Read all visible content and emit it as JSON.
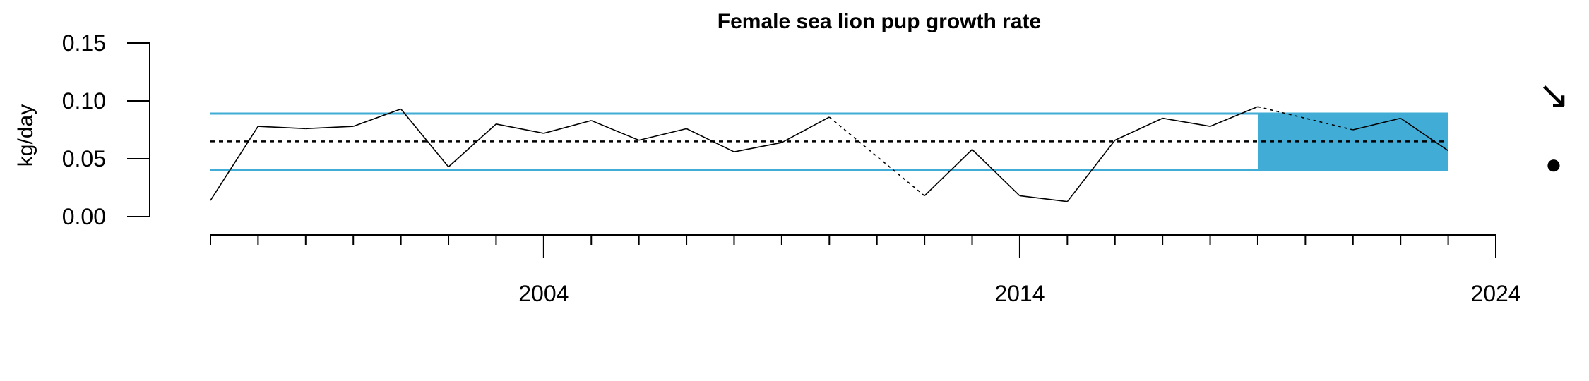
{
  "chart_data": {
    "type": "line",
    "title": "Female sea lion pup growth rate",
    "xlabel": "",
    "ylabel": "kg/day",
    "xlim": [
      1997,
      2024
    ],
    "ylim": [
      0,
      0.15
    ],
    "y_ticks": [
      0.0,
      0.05,
      0.1,
      0.15
    ],
    "y_tick_labels": [
      "0.00",
      "0.05",
      "0.10",
      "0.15"
    ],
    "x_ticks_major": [
      2004,
      2014,
      2024
    ],
    "x_tick_labels": [
      "2004",
      "2014",
      "2024"
    ],
    "x_ticks_minor": [
      1997,
      1998,
      1999,
      2000,
      2001,
      2002,
      2003,
      2004,
      2005,
      2006,
      2007,
      2008,
      2009,
      2010,
      2011,
      2012,
      2013,
      2014,
      2015,
      2016,
      2017,
      2018,
      2019,
      2020,
      2021,
      2022,
      2023,
      2024
    ],
    "series": [
      {
        "values": [
          {
            "x": 1997,
            "y": 0.014
          },
          {
            "x": 1998,
            "y": 0.078
          },
          {
            "x": 1999,
            "y": 0.076
          },
          {
            "x": 2000,
            "y": 0.078
          },
          {
            "x": 2001,
            "y": 0.093
          },
          {
            "x": 2002,
            "y": 0.043
          },
          {
            "x": 2003,
            "y": 0.08
          },
          {
            "x": 2004,
            "y": 0.072
          },
          {
            "x": 2005,
            "y": 0.083
          },
          {
            "x": 2006,
            "y": 0.066
          },
          {
            "x": 2007,
            "y": 0.076
          },
          {
            "x": 2008,
            "y": 0.056
          },
          {
            "x": 2009,
            "y": 0.064
          },
          {
            "x": 2010,
            "y": 0.086
          },
          {
            "x": 2012,
            "y": 0.018
          },
          {
            "x": 2013,
            "y": 0.058
          },
          {
            "x": 2014,
            "y": 0.018
          },
          {
            "x": 2015,
            "y": 0.013
          },
          {
            "x": 2016,
            "y": 0.066
          },
          {
            "x": 2017,
            "y": 0.085
          },
          {
            "x": 2018,
            "y": 0.078
          },
          {
            "x": 2019,
            "y": 0.095
          },
          {
            "x": 2021,
            "y": 0.075
          },
          {
            "x": 2022,
            "y": 0.085
          },
          {
            "x": 2023,
            "y": 0.057
          }
        ],
        "gap_segments": [
          [
            2010,
            2012
          ],
          [
            2019,
            2021
          ]
        ]
      }
    ],
    "mean": 0.065,
    "upper_sd": 0.089,
    "lower_sd": 0.04,
    "highlight_range": [
      2019,
      2023
    ],
    "trend_symbol": "↘",
    "mean_symbol": "●",
    "colors": {
      "line": "#000000",
      "band": "#41acd6",
      "highlight": "#41acd6"
    }
  }
}
